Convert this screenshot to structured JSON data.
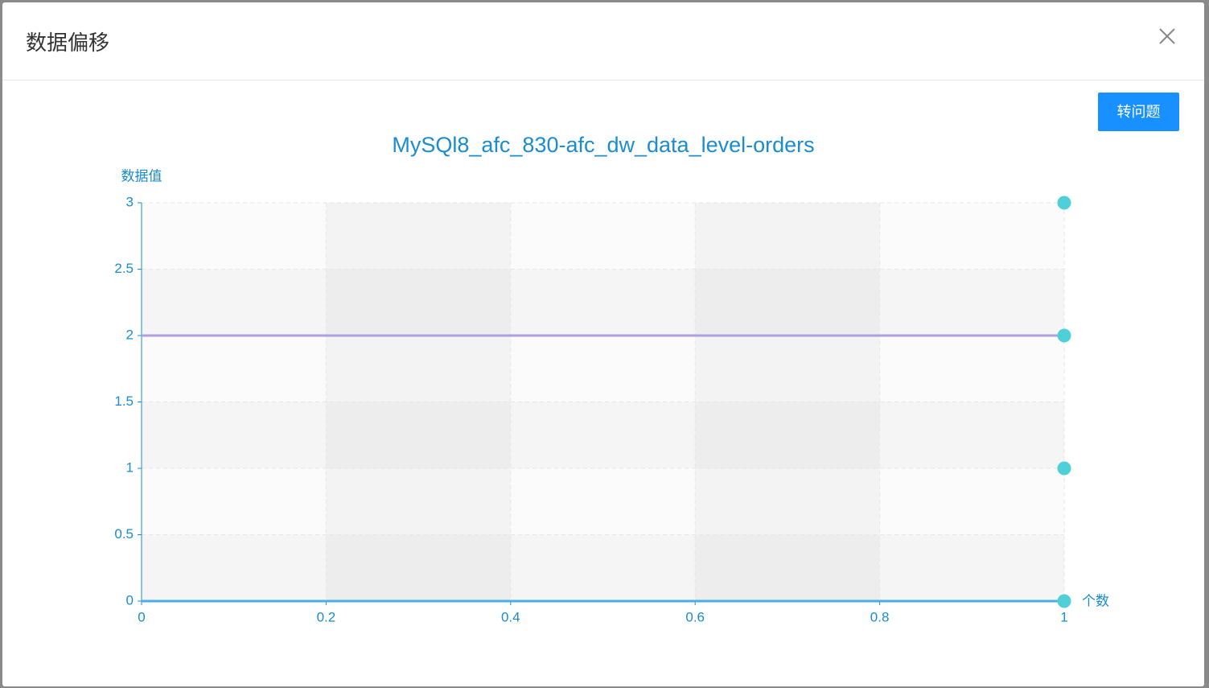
{
  "dialog": {
    "title": "数据偏移",
    "button": "转问题"
  },
  "chart_data": {
    "type": "scatter",
    "title": "MySQl8_afc_830-afc_dw_data_level-orders",
    "y_label": "数据值",
    "x_label": "个数",
    "x": [
      1,
      1,
      1,
      1
    ],
    "values": [
      3,
      2,
      1,
      0
    ],
    "color": "#4fd0d8",
    "reference_lines": [
      {
        "value": 2,
        "color": "#b09ee0"
      },
      {
        "value": 0,
        "color": "#4aaee6"
      }
    ],
    "xlim": [
      0,
      1
    ],
    "xticks": [
      0,
      0.2,
      0.4,
      0.6,
      0.8,
      1
    ],
    "ylim": [
      0,
      3
    ],
    "yticks": [
      0,
      0.5,
      1,
      1.5,
      2,
      2.5,
      3
    ],
    "grid": true
  }
}
